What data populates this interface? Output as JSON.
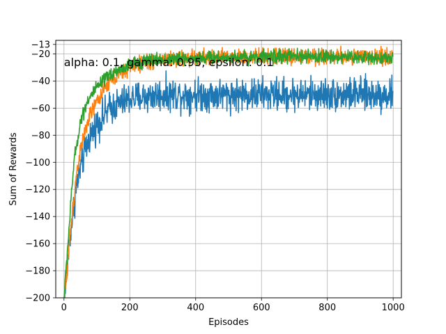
{
  "chart_data": {
    "type": "line",
    "title": "",
    "annotation": "alpha: 0.1, gamma: 0.95, epsilon: 0.1",
    "xlabel": "Episodes",
    "ylabel": "Sum of Rewards",
    "xlim": [
      -25,
      1025
    ],
    "ylim": [
      -200,
      -10
    ],
    "grid": true,
    "x_ticks": [
      0,
      200,
      400,
      600,
      800,
      1000
    ],
    "x_tick_labels": [
      "0",
      "200",
      "400",
      "600",
      "800",
      "1000"
    ],
    "y_ticks": [
      -13,
      -20,
      -40,
      -60,
      -80,
      -100,
      -120,
      -140,
      -160,
      -180,
      -200
    ],
    "y_tick_labels": [
      "−13",
      "−20",
      "−40",
      "−60",
      "−80",
      "−100",
      "−120",
      "−140",
      "−160",
      "−180",
      "−200"
    ],
    "series": [
      {
        "name": "series-blue",
        "color": "#1f77b4",
        "num_episodes": 1000,
        "curve": {
          "x": [
            0,
            20,
            40,
            60,
            80,
            100,
            140,
            200,
            300,
            400,
            600,
            800,
            1000
          ],
          "y": [
            -205,
            -150,
            -115,
            -95,
            -80,
            -72,
            -60,
            -53,
            -50,
            -50,
            -50,
            -50,
            -50
          ]
        },
        "noise": 6
      },
      {
        "name": "series-orange",
        "color": "#ff7f0e",
        "num_episodes": 1000,
        "curve": {
          "x": [
            0,
            20,
            40,
            60,
            80,
            100,
            140,
            200,
            250,
            300,
            400,
            600,
            800,
            1000
          ],
          "y": [
            -205,
            -150,
            -105,
            -80,
            -65,
            -55,
            -40,
            -30,
            -26,
            -24,
            -23,
            -22,
            -22,
            -22
          ]
        },
        "noise": 3
      },
      {
        "name": "series-green",
        "color": "#2ca02c",
        "num_episodes": 1000,
        "curve": {
          "x": [
            0,
            15,
            30,
            50,
            70,
            100,
            140,
            200,
            250,
            300,
            400,
            600,
            800,
            1000
          ],
          "y": [
            -200,
            -150,
            -100,
            -70,
            -55,
            -45,
            -35,
            -28,
            -25,
            -24,
            -23,
            -22,
            -22,
            -23
          ]
        },
        "noise": 2.5
      }
    ]
  }
}
